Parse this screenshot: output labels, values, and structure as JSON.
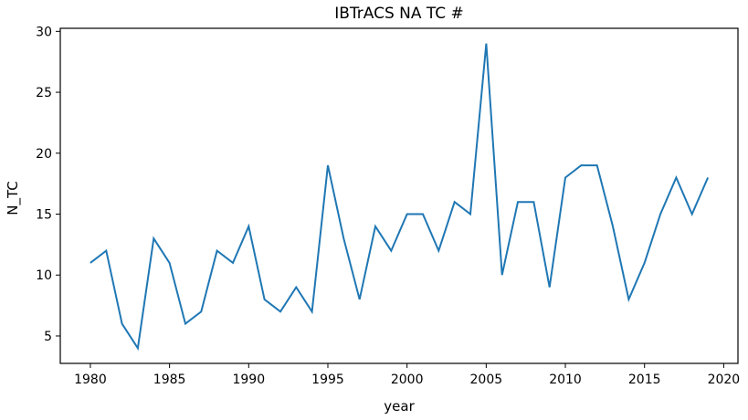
{
  "chart_data": {
    "type": "line",
    "title": "IBTrACS NA TC #",
    "xlabel": "year",
    "ylabel": "N_TC",
    "xlim": [
      1978.1,
      2020.9
    ],
    "ylim": [
      2.75,
      30.25
    ],
    "x_ticks": [
      1980,
      1985,
      1990,
      1995,
      2000,
      2005,
      2010,
      2015,
      2020
    ],
    "y_ticks": [
      5,
      10,
      15,
      20,
      25,
      30
    ],
    "grid": false,
    "legend": null,
    "x": [
      1980,
      1981,
      1982,
      1983,
      1984,
      1985,
      1986,
      1987,
      1988,
      1989,
      1990,
      1991,
      1992,
      1993,
      1994,
      1995,
      1996,
      1997,
      1998,
      1999,
      2000,
      2001,
      2002,
      2003,
      2004,
      2005,
      2006,
      2007,
      2008,
      2009,
      2010,
      2011,
      2012,
      2013,
      2014,
      2015,
      2016,
      2017,
      2018,
      2019
    ],
    "series": [
      {
        "name": "N_TC",
        "color": "#1f77b4",
        "values": [
          11,
          12,
          6,
          4,
          13,
          11,
          6,
          7,
          12,
          11,
          14,
          8,
          7,
          9,
          7,
          19,
          13,
          8,
          14,
          12,
          15,
          15,
          12,
          16,
          15,
          29,
          10,
          16,
          16,
          9,
          18,
          19,
          19,
          14,
          8,
          11,
          15,
          18,
          15,
          18
        ]
      }
    ]
  }
}
